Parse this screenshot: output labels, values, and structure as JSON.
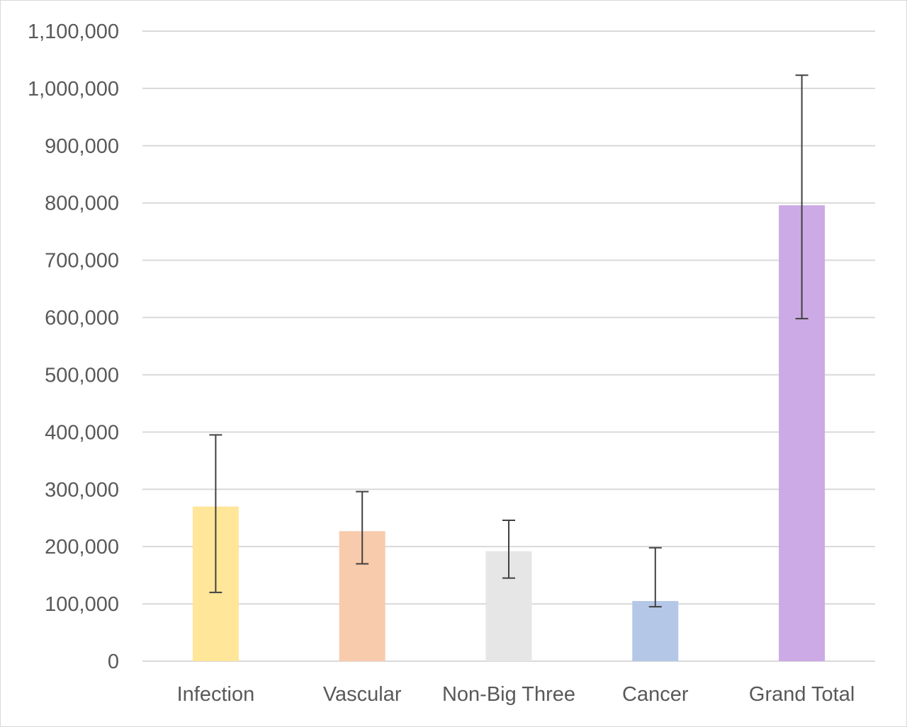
{
  "chart_data": {
    "type": "bar",
    "categories": [
      "Infection",
      "Vascular",
      "Non-Big Three",
      "Cancer",
      "Grand Total"
    ],
    "series": [
      {
        "values": [
          270000,
          227000,
          192000,
          105000,
          796000
        ],
        "error_low": [
          120000,
          170000,
          145000,
          95000,
          598000
        ],
        "error_high": [
          395000,
          296000,
          246000,
          198000,
          1023000
        ],
        "colors": [
          "#ffe699",
          "#f8cbad",
          "#e7e6e6",
          "#b4c7e7",
          "#cbaae5"
        ]
      }
    ],
    "ylim": [
      0,
      1100000
    ],
    "ytick_step": 100000,
    "ytick_labels": [
      "0",
      "100,000",
      "200,000",
      "300,000",
      "400,000",
      "500,000",
      "600,000",
      "700,000",
      "800,000",
      "900,000",
      "1,000,000",
      "1,100,000"
    ],
    "grid": true,
    "legend": "none",
    "title": "",
    "xlabel": "",
    "ylabel": "",
    "gridline_color": "#d9d9d9",
    "axis_text_color": "#595959",
    "error_bar_color": "#404040"
  }
}
